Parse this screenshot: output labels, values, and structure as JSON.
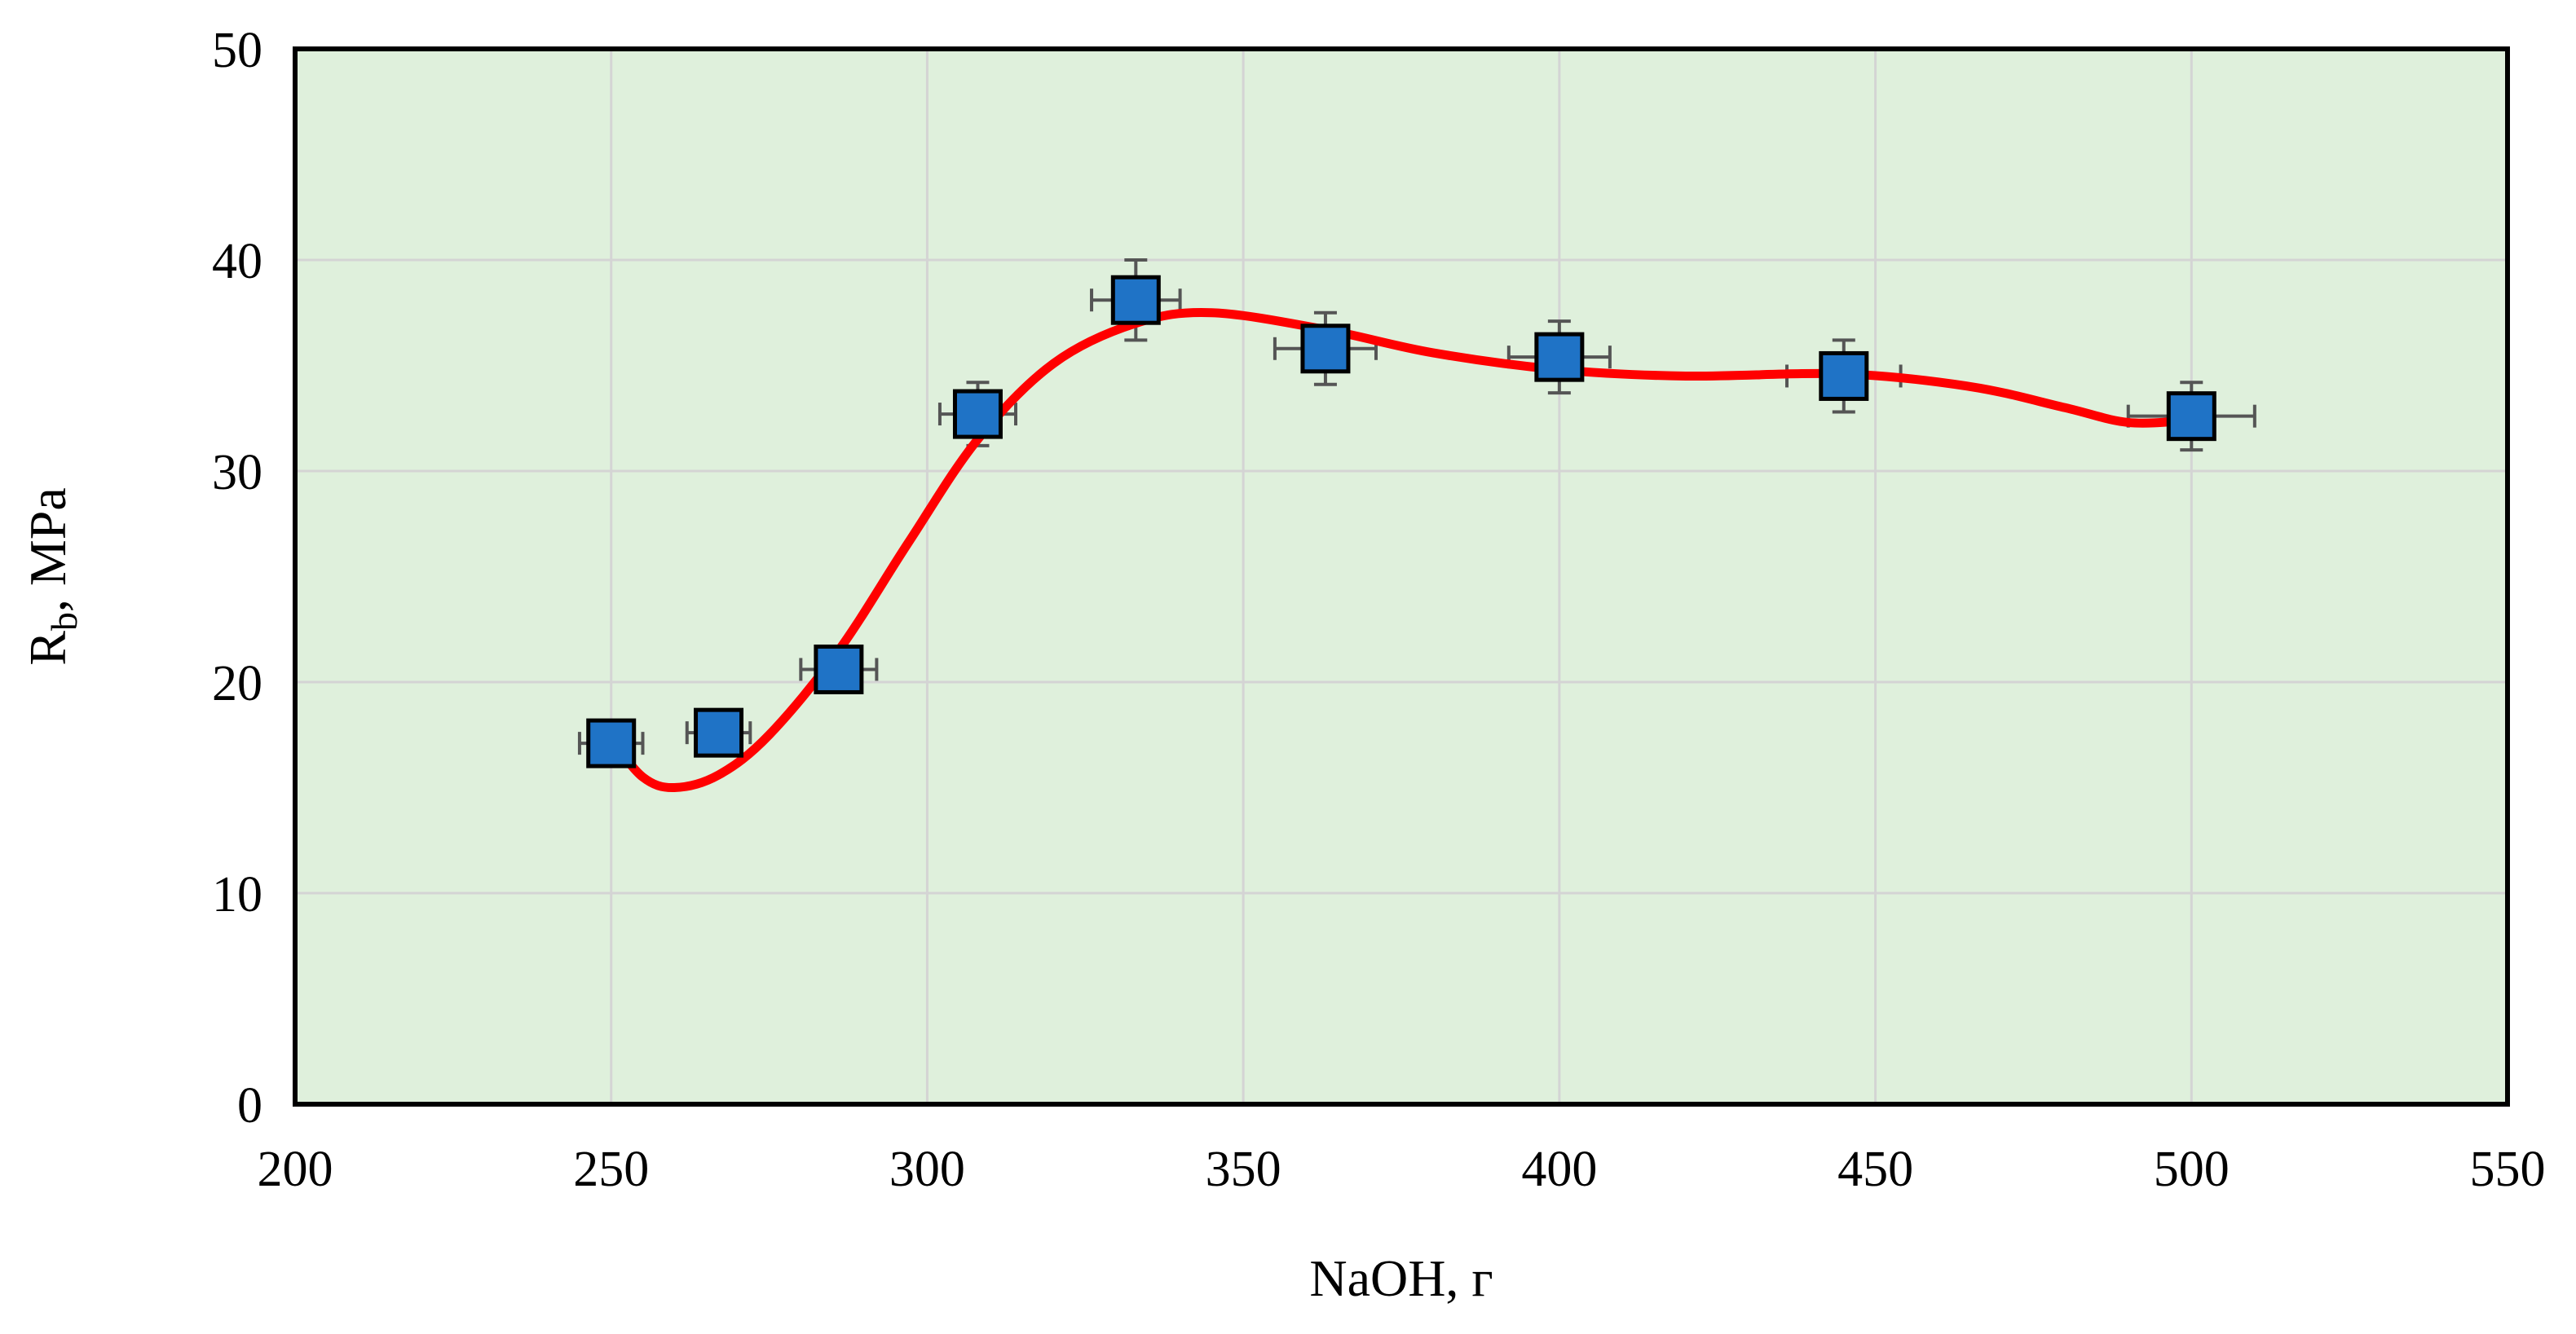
{
  "chart_data": {
    "type": "scatter",
    "xlabel": "NaOH, г",
    "ylabel_main": "R",
    "ylabel_sub": "b",
    "ylabel_rest": ", MPa",
    "xlim": [
      200,
      550
    ],
    "ylim": [
      0,
      50
    ],
    "x_ticks": [
      200,
      250,
      300,
      350,
      400,
      450,
      500,
      550
    ],
    "y_ticks": [
      0,
      10,
      20,
      30,
      40,
      50
    ],
    "grid": true,
    "legend": "none",
    "marker_color": "#1f73c6",
    "fit_color": "#ff0000",
    "points": [
      {
        "x": 250,
        "y": 17.1,
        "xerr": 5,
        "yerr": 0.7
      },
      {
        "x": 267,
        "y": 17.6,
        "xerr": 5,
        "yerr": 0.7
      },
      {
        "x": 286,
        "y": 20.6,
        "xerr": 6,
        "yerr": 0.8
      },
      {
        "x": 308,
        "y": 32.7,
        "xerr": 6,
        "yerr": 1.5
      },
      {
        "x": 333,
        "y": 38.1,
        "xerr": 7,
        "yerr": 1.9
      },
      {
        "x": 363,
        "y": 35.8,
        "xerr": 8,
        "yerr": 1.7
      },
      {
        "x": 400,
        "y": 35.4,
        "xerr": 8,
        "yerr": 1.7
      },
      {
        "x": 445,
        "y": 34.5,
        "xerr": 9,
        "yerr": 1.7
      },
      {
        "x": 500,
        "y": 32.6,
        "xerr": 10,
        "yerr": 1.6
      }
    ],
    "fit_curve": [
      {
        "x": 250,
        "y": 17.3
      },
      {
        "x": 255,
        "y": 15.5
      },
      {
        "x": 260,
        "y": 15.0
      },
      {
        "x": 267,
        "y": 15.6
      },
      {
        "x": 275,
        "y": 17.5
      },
      {
        "x": 286,
        "y": 21.5
      },
      {
        "x": 297,
        "y": 26.6
      },
      {
        "x": 308,
        "y": 31.5
      },
      {
        "x": 320,
        "y": 35.1
      },
      {
        "x": 333,
        "y": 37.0
      },
      {
        "x": 345,
        "y": 37.5
      },
      {
        "x": 363,
        "y": 36.7
      },
      {
        "x": 380,
        "y": 35.6
      },
      {
        "x": 400,
        "y": 34.8
      },
      {
        "x": 420,
        "y": 34.5
      },
      {
        "x": 445,
        "y": 34.6
      },
      {
        "x": 465,
        "y": 34.0
      },
      {
        "x": 480,
        "y": 33.0
      },
      {
        "x": 490,
        "y": 32.3
      },
      {
        "x": 500,
        "y": 32.4
      }
    ]
  }
}
